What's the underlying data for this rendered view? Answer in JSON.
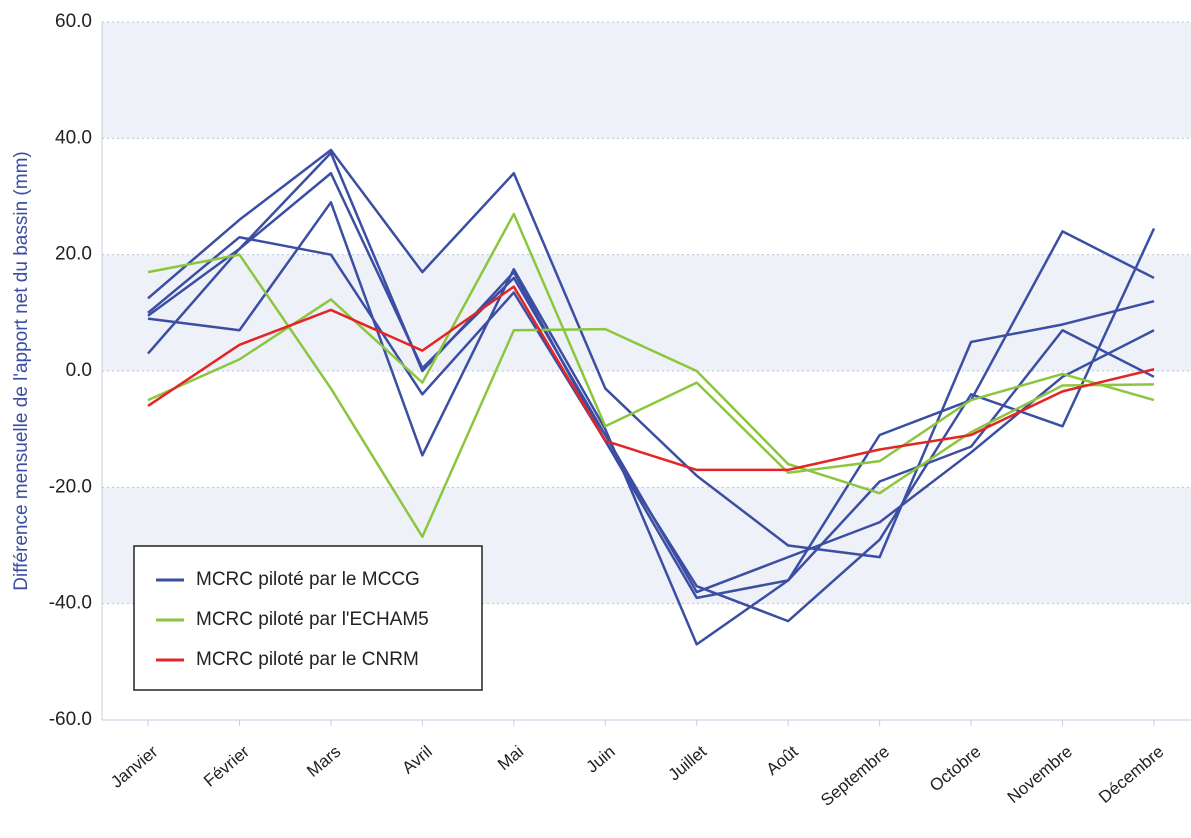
{
  "chart_data": {
    "type": "line",
    "y_label": "Différence mensuelle de l'apport net du bassin (mm)",
    "categories": [
      "Janvier",
      "Février",
      "Mars",
      "Avril",
      "Mai",
      "Juin",
      "Juillet",
      "Août",
      "Septembre",
      "Octobre",
      "Novembre",
      "Décembre"
    ],
    "series": [
      {
        "name": "MCRC piloté par le MCCG",
        "color": "#3b4ea3",
        "values": [
          [
            12.5,
            26,
            38,
            17,
            34,
            -3,
            -18,
            -30,
            -32,
            5,
            8,
            12
          ],
          [
            9,
            7,
            29,
            -14.5,
            17.5,
            -10,
            -47,
            -36,
            -11,
            -5,
            24,
            16
          ],
          [
            3,
            21,
            37.5,
            0,
            17,
            -12,
            -39,
            -36,
            -19,
            -13,
            7,
            -1
          ],
          [
            10,
            23,
            20,
            -4,
            13.5,
            -12,
            -37,
            -43,
            -29,
            -4,
            -9.5,
            24.5
          ],
          [
            9.5,
            21,
            34,
            0.5,
            16,
            -11,
            -38,
            -32,
            -26,
            -14,
            -1,
            7
          ]
        ]
      },
      {
        "name": "MCRC piloté par l'ECHAM5",
        "color": "#8cc63f",
        "values": [
          [
            17,
            20,
            -3,
            -28.5,
            7,
            7.2,
            0,
            -16,
            -21,
            -10.5,
            -2.5,
            -2.3
          ],
          [
            -5,
            2,
            12.3,
            -2,
            27,
            -9.5,
            -2,
            -17.5,
            -15.5,
            -5,
            -0.5,
            -5
          ]
        ]
      },
      {
        "name": "MCRC piloté par le CNRM",
        "color": "#e32526",
        "values": [
          [
            -6,
            4.5,
            10.5,
            3.5,
            14.5,
            -12,
            -17,
            -17,
            -13.5,
            -11,
            -3.5,
            0.3
          ]
        ]
      }
    ],
    "ylim": [
      -60,
      60
    ],
    "yticks": [
      {
        "value": -60,
        "label": "-60.0"
      },
      {
        "value": -40,
        "label": "-40.0"
      },
      {
        "value": -20,
        "label": "-20.0"
      },
      {
        "value": 0,
        "label": "0.0"
      },
      {
        "value": 20,
        "label": "20.0"
      },
      {
        "value": 40,
        "label": "40.0"
      },
      {
        "value": 60,
        "label": "60.0"
      }
    ],
    "grid": true,
    "legend": "lower left"
  }
}
